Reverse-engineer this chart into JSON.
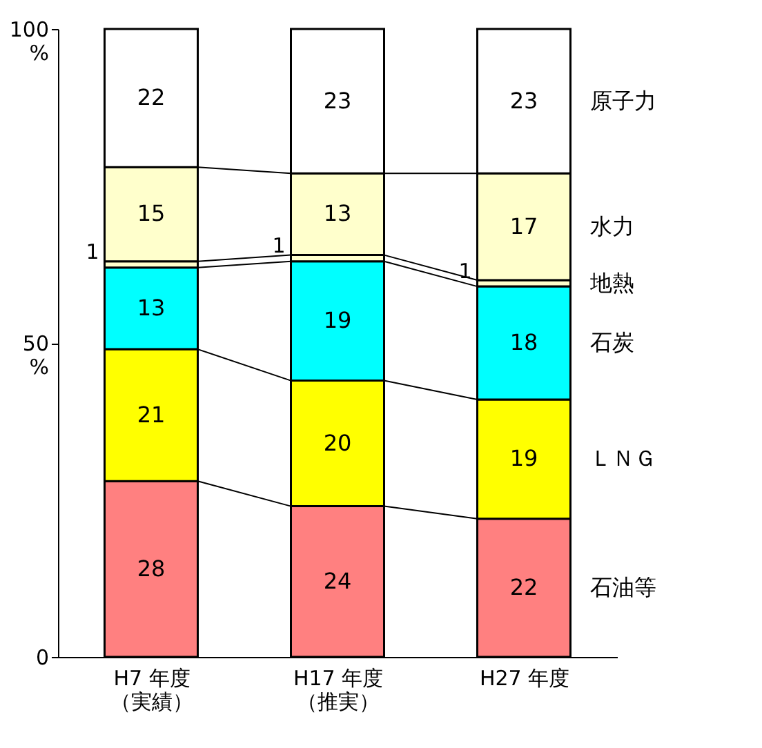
{
  "chart_data": {
    "type": "bar",
    "stacked": true,
    "data_labels": true,
    "grid": false,
    "categories": [
      "H7 年度（実績）",
      "H17 年度（推実）",
      "H27 年度"
    ],
    "series": [
      {
        "name": "石油等",
        "color": "#ff8080",
        "values": [
          28,
          24,
          22
        ]
      },
      {
        "name": "ＬＮＧ",
        "color": "#ffff00",
        "values": [
          21,
          20,
          19
        ]
      },
      {
        "name": "石炭",
        "color": "#00ffff",
        "values": [
          13,
          19,
          18
        ]
      },
      {
        "name": "地熱",
        "color": "#ffffcc",
        "values": [
          1,
          1,
          1
        ]
      },
      {
        "name": "水力",
        "color": "#ffffcc",
        "values": [
          15,
          13,
          17
        ]
      },
      {
        "name": "原子力",
        "color": "#ffffff",
        "values": [
          22,
          23,
          23
        ]
      }
    ],
    "ylim": [
      0,
      100
    ],
    "yticks": [
      0,
      {
        "value": 50,
        "label": "50\n%"
      },
      {
        "value": 100,
        "label": "100\n%"
      }
    ]
  }
}
